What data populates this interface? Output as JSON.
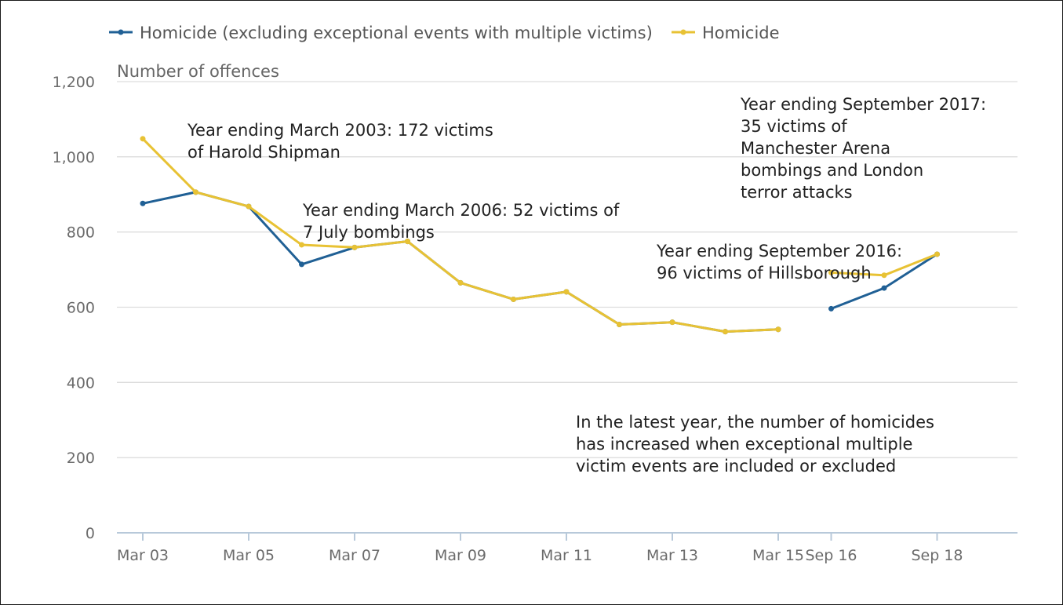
{
  "chart_data": {
    "type": "line",
    "title": "",
    "xlabel": "",
    "ylabel": "Number of offences",
    "ylim": [
      0,
      1200
    ],
    "yticks": [
      0,
      200,
      400,
      600,
      800,
      1000,
      1200
    ],
    "ytick_labels": [
      "0",
      "200",
      "400",
      "600",
      "800",
      "1,000",
      "1,200"
    ],
    "categories": [
      "Mar 03",
      "Mar 04",
      "Mar 05",
      "Mar 06",
      "Mar 07",
      "Mar 08",
      "Mar 09",
      "Mar 10",
      "Mar 11",
      "Mar 12",
      "Mar 13",
      "Mar 14",
      "Mar 15",
      "Sep 16",
      "Sep 17",
      "Sep 18"
    ],
    "x_tick_labels": [
      "Mar 03",
      "Mar 05",
      "Mar 07",
      "Mar 09",
      "Mar 11",
      "Mar 13",
      "Mar 15",
      "Sep 16",
      "Sep 18"
    ],
    "legend_position": "top-left",
    "grid": true,
    "series": [
      {
        "name": "Homicide (excluding exceptional events with multiple victims)",
        "color": "#206095",
        "segments": [
          {
            "start_index": 0,
            "values": [
              876,
              906,
              868,
              714,
              759,
              775,
              665,
              621,
              641,
              554,
              560,
              535,
              541
            ]
          },
          {
            "start_index": 13,
            "values": [
              596,
              651,
              741
            ]
          }
        ]
      },
      {
        "name": "Homicide",
        "color": "#e8c234",
        "segments": [
          {
            "start_index": 0,
            "values": [
              1048,
              906,
              868,
              766,
              759,
              775,
              665,
              621,
              641,
              554,
              560,
              535,
              541
            ]
          },
          {
            "start_index": 13,
            "values": [
              692,
              685,
              741
            ]
          }
        ]
      }
    ],
    "annotations": [
      {
        "lines": [
          "Year ending March 2003: 172 victims",
          "of Harold Shipman"
        ]
      },
      {
        "lines": [
          "Year ending March 2006: 52 victims of",
          "7 July bombings"
        ]
      },
      {
        "lines": [
          "Year ending September 2016:",
          "96 victims of Hillsborough"
        ]
      },
      {
        "lines": [
          "Year ending September 2017:",
          "35 victims of",
          "Manchester Arena",
          "bombings and London",
          "terror attacks"
        ]
      },
      {
        "lines": [
          "In the latest year, the number of homicides",
          "has increased when exceptional multiple",
          "victim events are included or excluded"
        ]
      }
    ]
  }
}
